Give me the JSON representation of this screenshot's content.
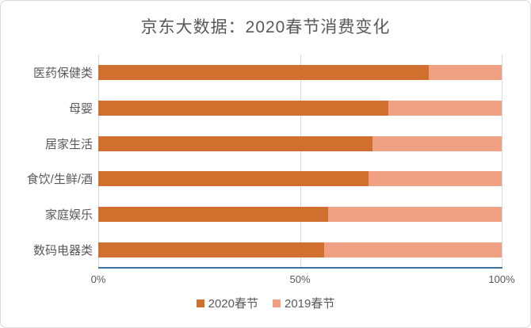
{
  "chart": {
    "title": "京东大数据：2020春节消费变化",
    "x_ticks": [
      "0%",
      "50%",
      "100%"
    ]
  },
  "chart_data": {
    "type": "bar",
    "orientation": "horizontal",
    "stacked": true,
    "title": "京东大数据：2020春节消费变化",
    "categories": [
      "医药保健类",
      "母婴",
      "居家生活",
      "食饮/生鲜/酒",
      "家庭娱乐",
      "数码电器类"
    ],
    "series": [
      {
        "name": "2020春节",
        "color": "#d1702e",
        "values": [
          82,
          72,
          68,
          67,
          57,
          56
        ]
      },
      {
        "name": "2019春节",
        "color": "#f0a183",
        "values": [
          18,
          28,
          32,
          33,
          43,
          44
        ]
      }
    ],
    "xlim": [
      0,
      100
    ],
    "x_tick_labels": [
      "0%",
      "50%",
      "100%"
    ],
    "legend_position": "bottom",
    "gridlines": "vertical-major",
    "units": "percent"
  },
  "colors": {
    "series_2020": "#d1702e",
    "series_2019": "#f0a183",
    "axis_line": "#41719c",
    "gridline": "#d9d9d9",
    "text": "#595959",
    "card_border": "#d9d9d9",
    "background": "#ffffff"
  }
}
